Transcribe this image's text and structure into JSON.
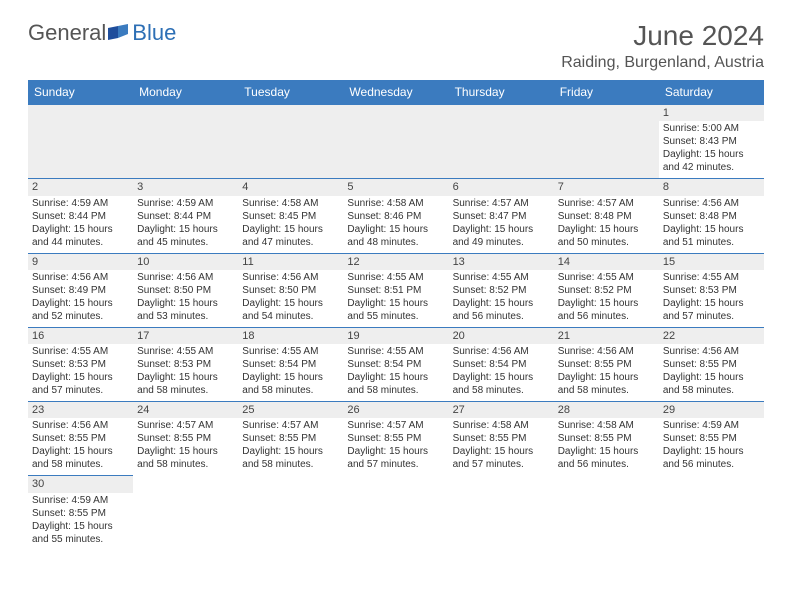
{
  "logo": {
    "text1": "General",
    "text2": "Blue"
  },
  "title": "June 2024",
  "location": "Raiding, Burgenland, Austria",
  "weekdays": [
    "Sunday",
    "Monday",
    "Tuesday",
    "Wednesday",
    "Thursday",
    "Friday",
    "Saturday"
  ],
  "colors": {
    "header_bg": "#3b7bbf",
    "header_fg": "#ffffff",
    "border": "#3b7bbf",
    "shade": "#eeeeee",
    "text": "#333333",
    "logo_blue": "#2d6fb5"
  },
  "rows": [
    [
      null,
      null,
      null,
      null,
      null,
      null,
      {
        "day": "1",
        "sunrise": "Sunrise: 5:00 AM",
        "sunset": "Sunset: 8:43 PM",
        "daylight1": "Daylight: 15 hours",
        "daylight2": "and 42 minutes."
      }
    ],
    [
      {
        "day": "2",
        "sunrise": "Sunrise: 4:59 AM",
        "sunset": "Sunset: 8:44 PM",
        "daylight1": "Daylight: 15 hours",
        "daylight2": "and 44 minutes."
      },
      {
        "day": "3",
        "sunrise": "Sunrise: 4:59 AM",
        "sunset": "Sunset: 8:44 PM",
        "daylight1": "Daylight: 15 hours",
        "daylight2": "and 45 minutes."
      },
      {
        "day": "4",
        "sunrise": "Sunrise: 4:58 AM",
        "sunset": "Sunset: 8:45 PM",
        "daylight1": "Daylight: 15 hours",
        "daylight2": "and 47 minutes."
      },
      {
        "day": "5",
        "sunrise": "Sunrise: 4:58 AM",
        "sunset": "Sunset: 8:46 PM",
        "daylight1": "Daylight: 15 hours",
        "daylight2": "and 48 minutes."
      },
      {
        "day": "6",
        "sunrise": "Sunrise: 4:57 AM",
        "sunset": "Sunset: 8:47 PM",
        "daylight1": "Daylight: 15 hours",
        "daylight2": "and 49 minutes."
      },
      {
        "day": "7",
        "sunrise": "Sunrise: 4:57 AM",
        "sunset": "Sunset: 8:48 PM",
        "daylight1": "Daylight: 15 hours",
        "daylight2": "and 50 minutes."
      },
      {
        "day": "8",
        "sunrise": "Sunrise: 4:56 AM",
        "sunset": "Sunset: 8:48 PM",
        "daylight1": "Daylight: 15 hours",
        "daylight2": "and 51 minutes."
      }
    ],
    [
      {
        "day": "9",
        "sunrise": "Sunrise: 4:56 AM",
        "sunset": "Sunset: 8:49 PM",
        "daylight1": "Daylight: 15 hours",
        "daylight2": "and 52 minutes."
      },
      {
        "day": "10",
        "sunrise": "Sunrise: 4:56 AM",
        "sunset": "Sunset: 8:50 PM",
        "daylight1": "Daylight: 15 hours",
        "daylight2": "and 53 minutes."
      },
      {
        "day": "11",
        "sunrise": "Sunrise: 4:56 AM",
        "sunset": "Sunset: 8:50 PM",
        "daylight1": "Daylight: 15 hours",
        "daylight2": "and 54 minutes."
      },
      {
        "day": "12",
        "sunrise": "Sunrise: 4:55 AM",
        "sunset": "Sunset: 8:51 PM",
        "daylight1": "Daylight: 15 hours",
        "daylight2": "and 55 minutes."
      },
      {
        "day": "13",
        "sunrise": "Sunrise: 4:55 AM",
        "sunset": "Sunset: 8:52 PM",
        "daylight1": "Daylight: 15 hours",
        "daylight2": "and 56 minutes."
      },
      {
        "day": "14",
        "sunrise": "Sunrise: 4:55 AM",
        "sunset": "Sunset: 8:52 PM",
        "daylight1": "Daylight: 15 hours",
        "daylight2": "and 56 minutes."
      },
      {
        "day": "15",
        "sunrise": "Sunrise: 4:55 AM",
        "sunset": "Sunset: 8:53 PM",
        "daylight1": "Daylight: 15 hours",
        "daylight2": "and 57 minutes."
      }
    ],
    [
      {
        "day": "16",
        "sunrise": "Sunrise: 4:55 AM",
        "sunset": "Sunset: 8:53 PM",
        "daylight1": "Daylight: 15 hours",
        "daylight2": "and 57 minutes."
      },
      {
        "day": "17",
        "sunrise": "Sunrise: 4:55 AM",
        "sunset": "Sunset: 8:53 PM",
        "daylight1": "Daylight: 15 hours",
        "daylight2": "and 58 minutes."
      },
      {
        "day": "18",
        "sunrise": "Sunrise: 4:55 AM",
        "sunset": "Sunset: 8:54 PM",
        "daylight1": "Daylight: 15 hours",
        "daylight2": "and 58 minutes."
      },
      {
        "day": "19",
        "sunrise": "Sunrise: 4:55 AM",
        "sunset": "Sunset: 8:54 PM",
        "daylight1": "Daylight: 15 hours",
        "daylight2": "and 58 minutes."
      },
      {
        "day": "20",
        "sunrise": "Sunrise: 4:56 AM",
        "sunset": "Sunset: 8:54 PM",
        "daylight1": "Daylight: 15 hours",
        "daylight2": "and 58 minutes."
      },
      {
        "day": "21",
        "sunrise": "Sunrise: 4:56 AM",
        "sunset": "Sunset: 8:55 PM",
        "daylight1": "Daylight: 15 hours",
        "daylight2": "and 58 minutes."
      },
      {
        "day": "22",
        "sunrise": "Sunrise: 4:56 AM",
        "sunset": "Sunset: 8:55 PM",
        "daylight1": "Daylight: 15 hours",
        "daylight2": "and 58 minutes."
      }
    ],
    [
      {
        "day": "23",
        "sunrise": "Sunrise: 4:56 AM",
        "sunset": "Sunset: 8:55 PM",
        "daylight1": "Daylight: 15 hours",
        "daylight2": "and 58 minutes."
      },
      {
        "day": "24",
        "sunrise": "Sunrise: 4:57 AM",
        "sunset": "Sunset: 8:55 PM",
        "daylight1": "Daylight: 15 hours",
        "daylight2": "and 58 minutes."
      },
      {
        "day": "25",
        "sunrise": "Sunrise: 4:57 AM",
        "sunset": "Sunset: 8:55 PM",
        "daylight1": "Daylight: 15 hours",
        "daylight2": "and 58 minutes."
      },
      {
        "day": "26",
        "sunrise": "Sunrise: 4:57 AM",
        "sunset": "Sunset: 8:55 PM",
        "daylight1": "Daylight: 15 hours",
        "daylight2": "and 57 minutes."
      },
      {
        "day": "27",
        "sunrise": "Sunrise: 4:58 AM",
        "sunset": "Sunset: 8:55 PM",
        "daylight1": "Daylight: 15 hours",
        "daylight2": "and 57 minutes."
      },
      {
        "day": "28",
        "sunrise": "Sunrise: 4:58 AM",
        "sunset": "Sunset: 8:55 PM",
        "daylight1": "Daylight: 15 hours",
        "daylight2": "and 56 minutes."
      },
      {
        "day": "29",
        "sunrise": "Sunrise: 4:59 AM",
        "sunset": "Sunset: 8:55 PM",
        "daylight1": "Daylight: 15 hours",
        "daylight2": "and 56 minutes."
      }
    ],
    [
      {
        "day": "30",
        "sunrise": "Sunrise: 4:59 AM",
        "sunset": "Sunset: 8:55 PM",
        "daylight1": "Daylight: 15 hours",
        "daylight2": "and 55 minutes."
      },
      null,
      null,
      null,
      null,
      null,
      null
    ]
  ]
}
